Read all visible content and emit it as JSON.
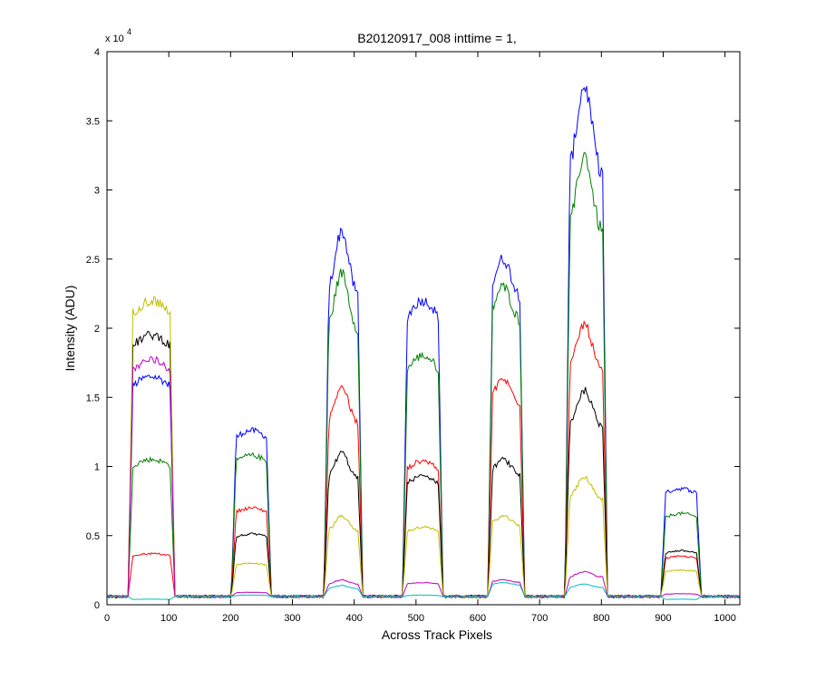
{
  "chart_data": {
    "type": "line",
    "title": "B20120917_008 inttime = 1,",
    "xlabel": "Across Track Pixels",
    "ylabel": "Intensity (ADU)",
    "y_multiplier_label": {
      "base": "x 10",
      "exponent": "4"
    },
    "xlim": [
      0,
      1024
    ],
    "ylim": [
      0,
      40000
    ],
    "xticks": [
      0,
      100,
      200,
      300,
      400,
      500,
      600,
      700,
      800,
      900,
      1000
    ],
    "xtick_labels": [
      "0",
      "100",
      "200",
      "300",
      "400",
      "500",
      "600",
      "700",
      "800",
      "900",
      "1000"
    ],
    "yticks": [
      0,
      5000,
      10000,
      15000,
      20000,
      25000,
      30000,
      35000,
      40000
    ],
    "ytick_labels": [
      "0",
      "0.5",
      "1",
      "1.5",
      "2",
      "2.5",
      "3",
      "3.5",
      "4"
    ],
    "grid": false,
    "blocks": [
      {
        "start": 38,
        "end": 106
      },
      {
        "start": 205,
        "end": 262
      },
      {
        "start": 355,
        "end": 410
      },
      {
        "start": 482,
        "end": 540
      },
      {
        "start": 620,
        "end": 672
      },
      {
        "start": 745,
        "end": 806
      },
      {
        "start": 900,
        "end": 958
      }
    ],
    "series": [
      {
        "color": "#0000ff",
        "levels": [
          16500,
          12600,
          27000,
          22000,
          25000,
          37500,
          8400
        ]
      },
      {
        "color": "#008000",
        "levels": [
          10500,
          10800,
          24000,
          18000,
          23000,
          32500,
          6600
        ]
      },
      {
        "color": "#ff0000",
        "levels": [
          3700,
          7000,
          15800,
          10400,
          16300,
          20300,
          3500
        ]
      },
      {
        "color": "#000000",
        "levels": [
          19500,
          5100,
          11000,
          9300,
          10500,
          15500,
          3900
        ]
      },
      {
        "color": "#c0c000",
        "levels": [
          22000,
          3000,
          6400,
          5600,
          6400,
          9200,
          2500
        ]
      },
      {
        "color": "#bf00bf",
        "levels": [
          17700,
          900,
          1800,
          1600,
          1800,
          2400,
          800
        ]
      },
      {
        "color": "#00bfbf",
        "levels": [
          400,
          700,
          1400,
          700,
          1600,
          1500,
          400
        ]
      }
    ]
  }
}
